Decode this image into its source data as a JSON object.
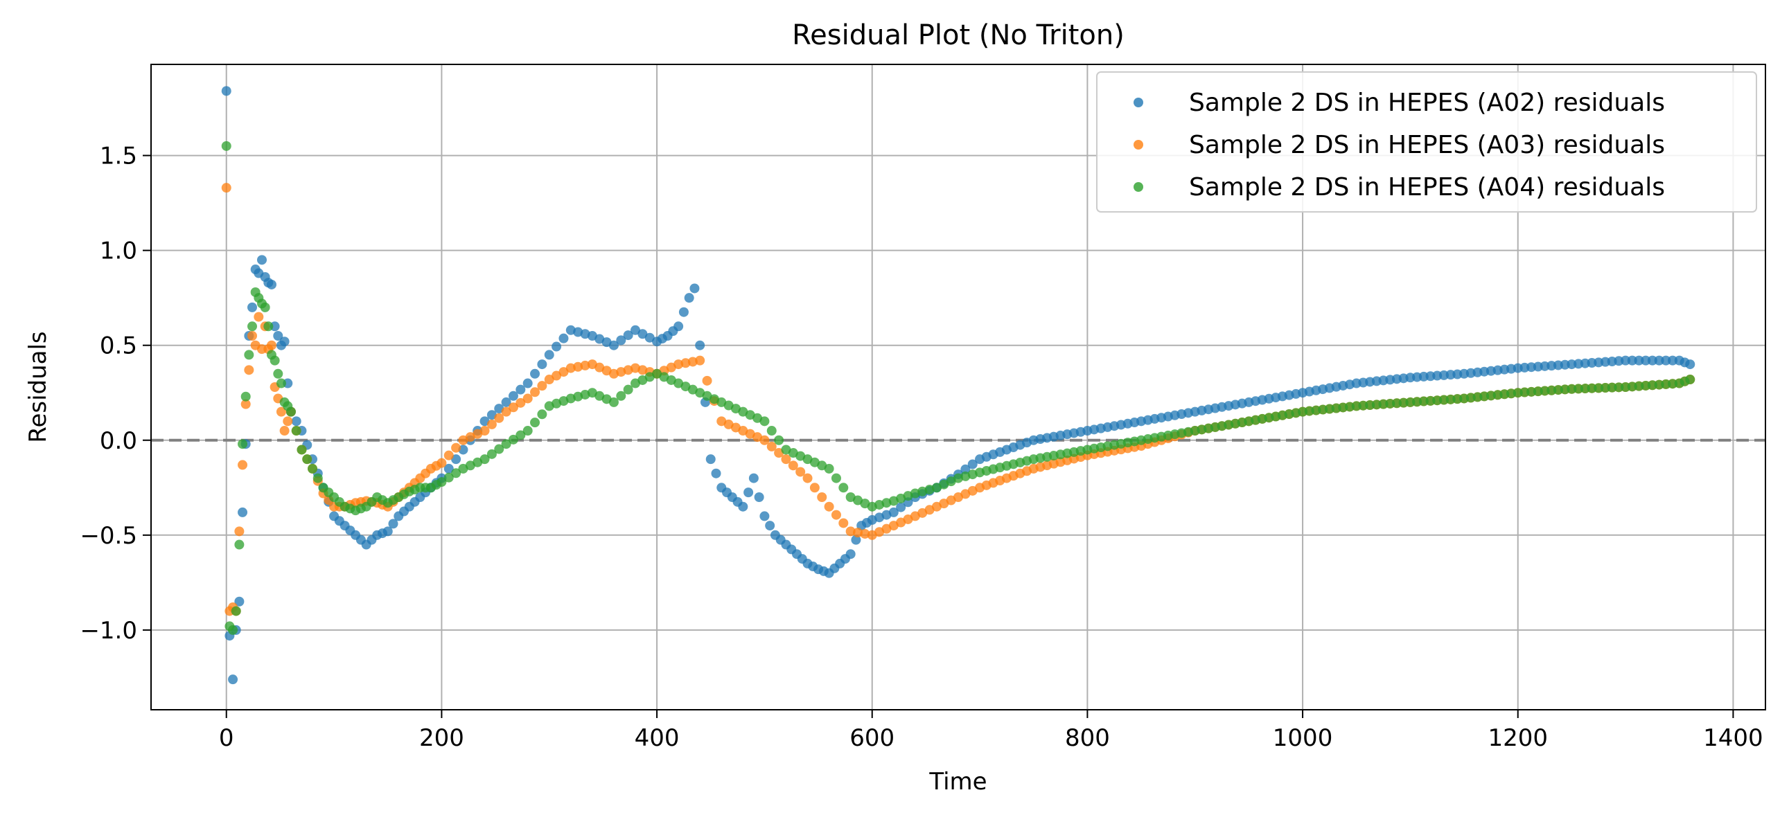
{
  "chart_data": {
    "type": "scatter",
    "title": "Residual Plot (No Triton)",
    "xlabel": "Time",
    "ylabel": "Residuals",
    "xlim": [
      -70,
      1430
    ],
    "ylim": [
      -1.42,
      1.98
    ],
    "xticks": [
      0,
      200,
      400,
      600,
      800,
      1000,
      1200,
      1400
    ],
    "xtick_labels": [
      "0",
      "200",
      "400",
      "600",
      "800",
      "1000",
      "1200",
      "1400"
    ],
    "yticks": [
      -1.0,
      -0.5,
      0.0,
      0.5,
      1.0,
      1.5
    ],
    "ytick_labels": [
      "−1.0",
      "−0.5",
      "0.0",
      "0.5",
      "1.0",
      "1.5"
    ],
    "grid": true,
    "legend_position": "upper-right",
    "reference_line": {
      "y": 0,
      "style": "dashed",
      "color": "#808080"
    },
    "series": [
      {
        "name": "Sample 2 DS in HEPES (A02) residuals",
        "color": "#1f77b4",
        "x": [
          0,
          3,
          6,
          9,
          12,
          15,
          18,
          21,
          24,
          27,
          30,
          33,
          36,
          39,
          42,
          45,
          48,
          51,
          54,
          57,
          60,
          70,
          80,
          90,
          100,
          110,
          120,
          130,
          140,
          150,
          160,
          170,
          180,
          190,
          200,
          220,
          240,
          260,
          280,
          300,
          320,
          340,
          360,
          380,
          400,
          410,
          420,
          430,
          435,
          440,
          445,
          450,
          460,
          470,
          480,
          490,
          500,
          510,
          520,
          530,
          540,
          550,
          560,
          570,
          580,
          590,
          600,
          620,
          640,
          660,
          680,
          700,
          750,
          800,
          850,
          900,
          950,
          1000,
          1050,
          1100,
          1150,
          1200,
          1250,
          1300,
          1350,
          1360
        ],
        "y": [
          1.84,
          -1.03,
          -1.26,
          -1.0,
          -0.85,
          -0.38,
          -0.02,
          0.55,
          0.7,
          0.9,
          0.88,
          0.95,
          0.86,
          0.83,
          0.82,
          0.6,
          0.55,
          0.5,
          0.52,
          0.3,
          0.15,
          0.05,
          -0.1,
          -0.25,
          -0.4,
          -0.45,
          -0.5,
          -0.55,
          -0.5,
          -0.48,
          -0.4,
          -0.35,
          -0.3,
          -0.25,
          -0.2,
          -0.05,
          0.1,
          0.2,
          0.3,
          0.45,
          0.58,
          0.55,
          0.5,
          0.58,
          0.52,
          0.55,
          0.6,
          0.75,
          0.8,
          0.5,
          0.2,
          -0.1,
          -0.25,
          -0.3,
          -0.35,
          -0.2,
          -0.4,
          -0.5,
          -0.55,
          -0.6,
          -0.65,
          -0.68,
          -0.7,
          -0.65,
          -0.6,
          -0.45,
          -0.42,
          -0.38,
          -0.3,
          -0.25,
          -0.18,
          -0.1,
          0.0,
          0.05,
          0.1,
          0.15,
          0.2,
          0.25,
          0.3,
          0.33,
          0.35,
          0.38,
          0.4,
          0.42,
          0.42,
          0.4
        ]
      },
      {
        "name": "Sample 2 DS in HEPES (A03) residuals",
        "color": "#ff7f0e",
        "x": [
          0,
          3,
          6,
          9,
          12,
          15,
          18,
          21,
          24,
          27,
          30,
          33,
          36,
          39,
          42,
          45,
          48,
          51,
          54,
          57,
          60,
          70,
          80,
          90,
          100,
          110,
          120,
          130,
          140,
          150,
          160,
          170,
          180,
          190,
          200,
          220,
          240,
          260,
          280,
          300,
          320,
          340,
          360,
          380,
          400,
          420,
          440,
          460,
          480,
          500,
          520,
          540,
          560,
          580,
          600,
          620,
          640,
          660,
          680,
          700,
          750,
          800,
          850,
          900,
          950,
          1000,
          1050,
          1100,
          1150,
          1200,
          1250,
          1300,
          1350,
          1360
        ],
        "y": [
          1.33,
          -0.9,
          -0.88,
          -0.9,
          -0.48,
          -0.13,
          0.19,
          0.37,
          0.55,
          0.5,
          0.65,
          0.48,
          0.6,
          0.48,
          0.5,
          0.28,
          0.22,
          0.15,
          0.05,
          0.1,
          0.15,
          -0.05,
          -0.15,
          -0.28,
          -0.35,
          -0.35,
          -0.33,
          -0.32,
          -0.33,
          -0.35,
          -0.3,
          -0.25,
          -0.2,
          -0.15,
          -0.12,
          0.0,
          0.05,
          0.15,
          0.22,
          0.32,
          0.38,
          0.4,
          0.35,
          0.38,
          0.35,
          0.4,
          0.42,
          0.1,
          0.05,
          0.0,
          -0.1,
          -0.2,
          -0.35,
          -0.48,
          -0.5,
          -0.45,
          -0.4,
          -0.35,
          -0.3,
          -0.25,
          -0.15,
          -0.08,
          -0.03,
          0.05,
          0.1,
          0.15,
          0.18,
          0.2,
          0.22,
          0.25,
          0.27,
          0.28,
          0.3,
          0.32
        ]
      },
      {
        "name": "Sample 2 DS in HEPES (A04) residuals",
        "color": "#2ca02c",
        "x": [
          0,
          3,
          6,
          9,
          12,
          15,
          18,
          21,
          24,
          27,
          30,
          33,
          36,
          39,
          42,
          45,
          48,
          51,
          54,
          57,
          60,
          70,
          80,
          90,
          100,
          110,
          120,
          130,
          140,
          150,
          160,
          170,
          180,
          190,
          200,
          220,
          240,
          260,
          280,
          300,
          320,
          340,
          360,
          380,
          400,
          420,
          440,
          460,
          480,
          500,
          520,
          540,
          560,
          580,
          600,
          620,
          640,
          660,
          680,
          700,
          750,
          800,
          850,
          900,
          950,
          1000,
          1050,
          1100,
          1150,
          1200,
          1250,
          1300,
          1350,
          1360
        ],
        "y": [
          1.55,
          -0.98,
          -1.0,
          -0.9,
          -0.55,
          -0.02,
          0.23,
          0.45,
          0.6,
          0.78,
          0.75,
          0.72,
          0.7,
          0.6,
          0.45,
          0.42,
          0.35,
          0.3,
          0.2,
          0.18,
          0.15,
          -0.05,
          -0.15,
          -0.25,
          -0.3,
          -0.35,
          -0.37,
          -0.35,
          -0.3,
          -0.33,
          -0.3,
          -0.27,
          -0.25,
          -0.25,
          -0.22,
          -0.15,
          -0.1,
          -0.02,
          0.05,
          0.18,
          0.22,
          0.25,
          0.2,
          0.3,
          0.35,
          0.3,
          0.25,
          0.2,
          0.15,
          0.1,
          -0.05,
          -0.1,
          -0.15,
          -0.3,
          -0.35,
          -0.32,
          -0.28,
          -0.25,
          -0.2,
          -0.17,
          -0.1,
          -0.05,
          0.0,
          0.05,
          0.1,
          0.15,
          0.18,
          0.2,
          0.22,
          0.25,
          0.27,
          0.28,
          0.3,
          0.32
        ]
      }
    ]
  }
}
